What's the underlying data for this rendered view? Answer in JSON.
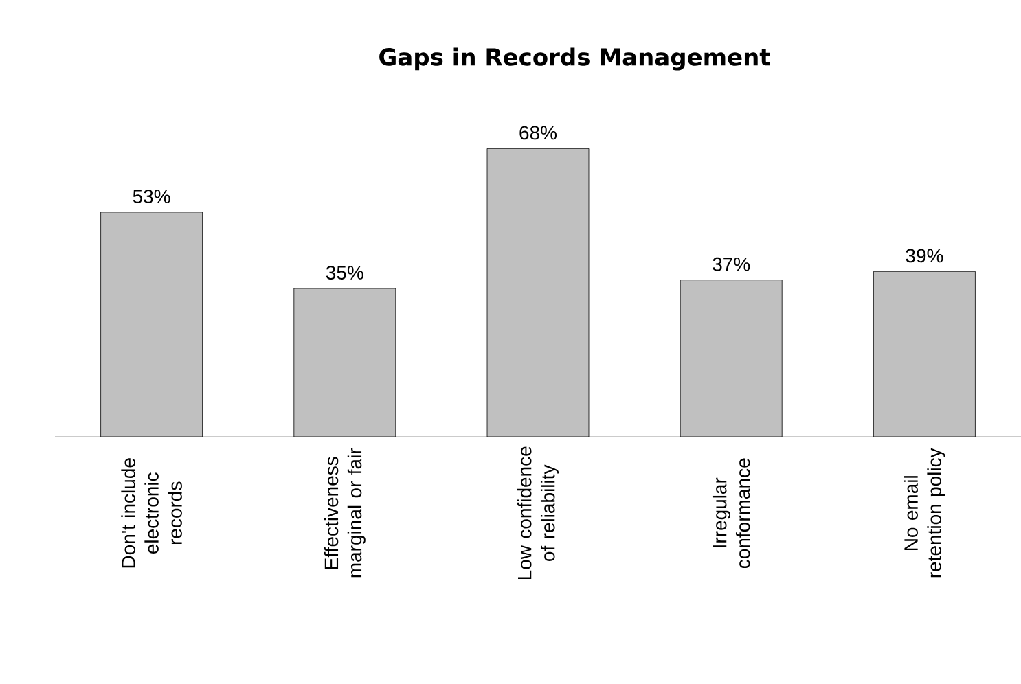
{
  "chart_data": {
    "type": "bar",
    "title": "Gaps in Records Management",
    "categories": [
      "Don't include electronic records",
      "Effectiveness marginal or fair",
      "Low confidence of reliability",
      "Irregular conformance",
      "No email retention policy"
    ],
    "values": [
      53,
      35,
      68,
      37,
      39
    ],
    "value_labels": [
      "53%",
      "35%",
      "68%",
      "37%",
      "39%"
    ],
    "color": "#c0c0c0"
  }
}
